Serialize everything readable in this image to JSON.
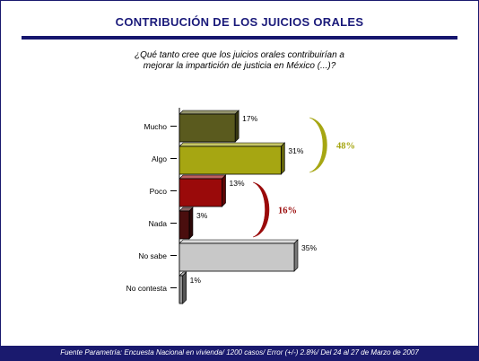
{
  "title": "CONTRIBUCIÓN DE LOS JUICIOS ORALES",
  "question_line1": "¿Qué tanto cree que los juicios orales contribuirían a",
  "question_line2": "mejorar la impartición de justicia en México (...)?",
  "footer": "Fuente Parametría: Encuesta Nacional en vivienda/ 1200 casos/ Error (+/-) 2.8%/ Del 24 al 27 de Marzo de 2007",
  "chart_data": {
    "type": "bar",
    "orientation": "horizontal",
    "categories": [
      "Mucho",
      "Algo",
      "Poco",
      "Nada",
      "No sabe",
      "No contesta"
    ],
    "values": [
      17,
      31,
      13,
      3,
      35,
      1
    ],
    "value_labels": [
      "17%",
      "31%",
      "13%",
      "3%",
      "35%",
      "1%"
    ],
    "colors": [
      "#5a5a1e",
      "#a6a612",
      "#9a0a0a",
      "#4a0e0e",
      "#c8c8c8",
      "#909090"
    ],
    "xlim": [
      0,
      35
    ],
    "groups": [
      {
        "label": "48%",
        "from": 0,
        "to": 1,
        "color": "#a6a612"
      },
      {
        "label": "16%",
        "from": 2,
        "to": 3,
        "color": "#9a0a0a"
      }
    ]
  }
}
